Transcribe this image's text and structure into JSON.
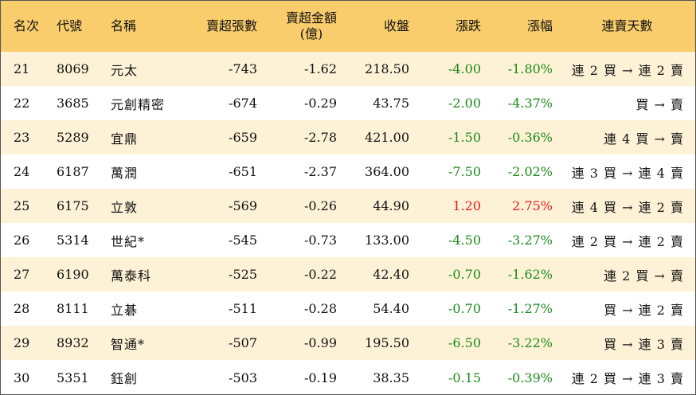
{
  "colors": {
    "header_bg": "#f9cd6c",
    "stripe_bg": "#fef2d6",
    "down": "#1a8a1a",
    "up": "#e11b1b"
  },
  "headers": {
    "rank": "名次",
    "code": "代號",
    "name": "名稱",
    "net_sell_lots": "賣超張數",
    "net_sell_amount_line1": "賣超金額",
    "net_sell_amount_line2": "(億)",
    "close": "收盤",
    "change": "漲跌",
    "change_pct": "漲幅",
    "streak": "連賣天數"
  },
  "rows": [
    {
      "rank": "21",
      "code": "8069",
      "name": "元太",
      "lots": "-743",
      "amount": "-1.62",
      "close": "218.50",
      "change": "-4.00",
      "pct": "-1.80%",
      "streak": "連 2 買 → 連 2 賣",
      "dir": "down"
    },
    {
      "rank": "22",
      "code": "3685",
      "name": "元創精密",
      "lots": "-674",
      "amount": "-0.29",
      "close": "43.75",
      "change": "-2.00",
      "pct": "-4.37%",
      "streak": "買 → 賣",
      "dir": "down"
    },
    {
      "rank": "23",
      "code": "5289",
      "name": "宜鼎",
      "lots": "-659",
      "amount": "-2.78",
      "close": "421.00",
      "change": "-1.50",
      "pct": "-0.36%",
      "streak": "連 4 買 → 賣",
      "dir": "down"
    },
    {
      "rank": "24",
      "code": "6187",
      "name": "萬潤",
      "lots": "-651",
      "amount": "-2.37",
      "close": "364.00",
      "change": "-7.50",
      "pct": "-2.02%",
      "streak": "連 3 買 → 連 4 賣",
      "dir": "down"
    },
    {
      "rank": "25",
      "code": "6175",
      "name": "立敦",
      "lots": "-569",
      "amount": "-0.26",
      "close": "44.90",
      "change": "1.20",
      "pct": "2.75%",
      "streak": "連 4 買 → 連 2 賣",
      "dir": "up"
    },
    {
      "rank": "26",
      "code": "5314",
      "name": "世紀*",
      "lots": "-545",
      "amount": "-0.73",
      "close": "133.00",
      "change": "-4.50",
      "pct": "-3.27%",
      "streak": "連 2 買 → 連 2 賣",
      "dir": "down"
    },
    {
      "rank": "27",
      "code": "6190",
      "name": "萬泰科",
      "lots": "-525",
      "amount": "-0.22",
      "close": "42.40",
      "change": "-0.70",
      "pct": "-1.62%",
      "streak": "連 2 買 → 賣",
      "dir": "down"
    },
    {
      "rank": "28",
      "code": "8111",
      "name": "立碁",
      "lots": "-511",
      "amount": "-0.28",
      "close": "54.40",
      "change": "-0.70",
      "pct": "-1.27%",
      "streak": "買 → 連 2 賣",
      "dir": "down"
    },
    {
      "rank": "29",
      "code": "8932",
      "name": "智通*",
      "lots": "-507",
      "amount": "-0.99",
      "close": "195.50",
      "change": "-6.50",
      "pct": "-3.22%",
      "streak": "買 → 連 3 賣",
      "dir": "down"
    },
    {
      "rank": "30",
      "code": "5351",
      "name": "鈺創",
      "lots": "-503",
      "amount": "-0.19",
      "close": "38.35",
      "change": "-0.15",
      "pct": "-0.39%",
      "streak": "連 2 買 → 連 3 賣",
      "dir": "down"
    }
  ]
}
